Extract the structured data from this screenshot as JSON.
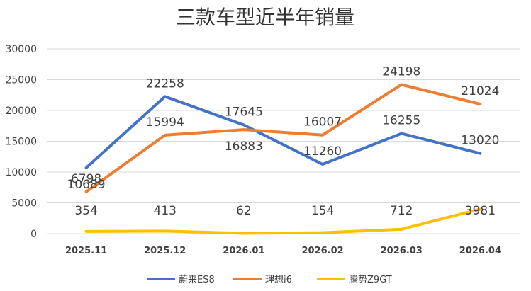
{
  "chart_data": {
    "type": "line",
    "title": "三款车型近半年销量",
    "categories": [
      "2025.11",
      "2025.12",
      "2026.01",
      "2026.02",
      "2026.03",
      "2026.04"
    ],
    "ylim": [
      0,
      30000
    ],
    "yticks": [
      "0",
      "5000",
      "10000",
      "15000",
      "20000",
      "25000",
      "30000"
    ],
    "grid": true,
    "legend_position": "bottom",
    "series": [
      {
        "name": "蔚来ES8",
        "color": "#4472C4",
        "values": [
          10689,
          22258,
          17645,
          11260,
          16255,
          13020
        ],
        "labels": [
          "10689",
          "22258",
          "17645",
          "11260",
          "16255",
          "13020"
        ]
      },
      {
        "name": "理想i6",
        "color": "#ED7D31",
        "values": [
          6798,
          15994,
          16883,
          16007,
          24198,
          21024
        ],
        "labels": [
          "6798",
          "15994",
          "16883",
          "16007",
          "24198",
          "21024"
        ]
      },
      {
        "name": "腾势Z9GT",
        "color": "#FFC000",
        "values": [
          354,
          413,
          62,
          154,
          712,
          3981
        ],
        "labels": [
          "354",
          "413",
          "62",
          "154",
          "712",
          "3981"
        ]
      }
    ]
  }
}
